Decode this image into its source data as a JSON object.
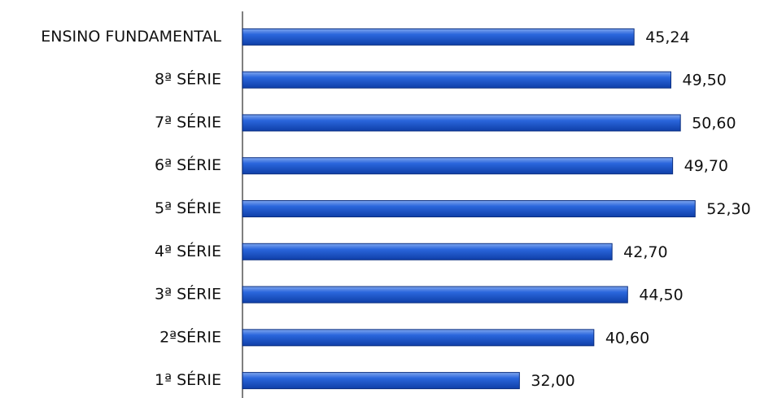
{
  "chart_data": {
    "type": "bar",
    "orientation": "horizontal",
    "categories": [
      "ENSINO FUNDAMENTAL",
      "8ª SÉRIE",
      "7ª SÉRIE",
      "6ª SÉRIE",
      "5ª SÉRIE",
      "4ª SÉRIE",
      "3ª SÉRIE",
      "2ªSÉRIE",
      "1ª SÉRIE"
    ],
    "values": [
      45.24,
      49.5,
      50.6,
      49.7,
      52.3,
      42.7,
      44.5,
      40.6,
      32
    ],
    "value_labels": [
      "45,24",
      "49,50",
      "50,60",
      "49,70",
      "52,30",
      "42,70",
      "44,50",
      "40,60",
      "32,00"
    ],
    "color": "#1f5ed8",
    "xlim": [
      0,
      55
    ]
  }
}
